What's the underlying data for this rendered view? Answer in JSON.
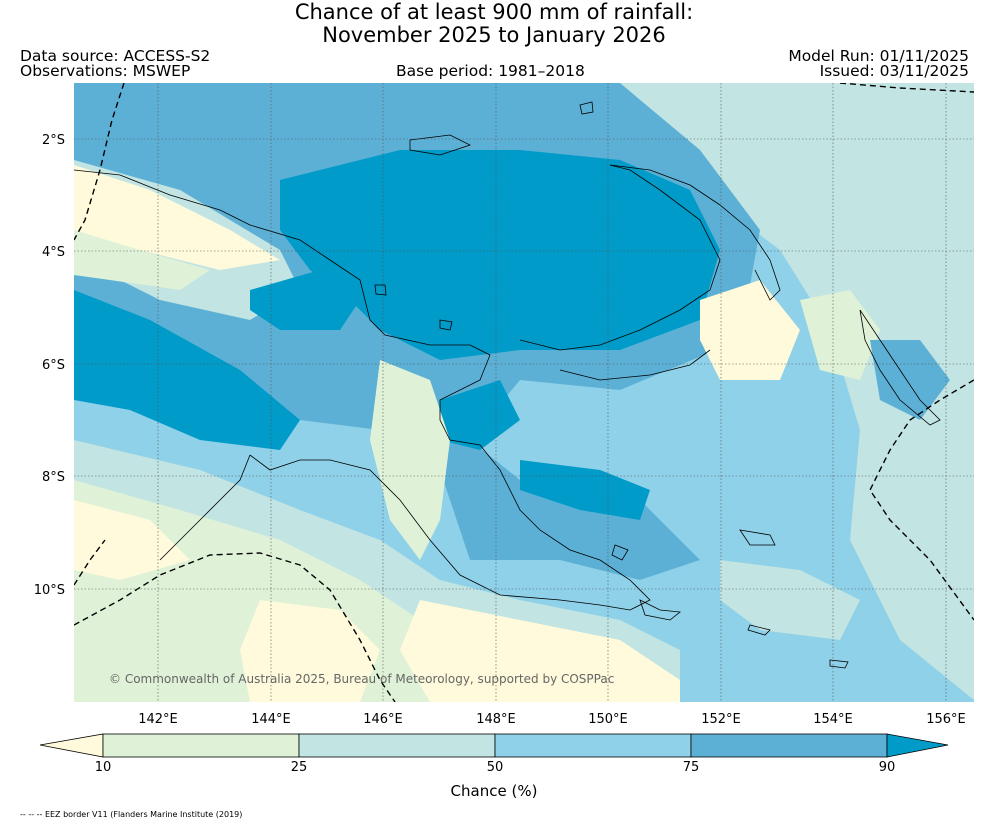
{
  "title": {
    "line1": "Chance of at least 900 mm of rainfall:",
    "line2": "November 2025 to January 2026"
  },
  "header": {
    "data_source": "Data source: ACCESS-S2",
    "observations": "Observations: MSWEP",
    "base_period": "Base period: 1981–2018",
    "model_run": "Model Run: 01/11/2025",
    "issued": "Issued: 03/11/2025"
  },
  "map": {
    "copyright": "© Commonwealth of Australia 2025, Bureau of Meteorology, supported by COSPPac",
    "lat_labels": [
      "2°S",
      "4°S",
      "6°S",
      "8°S",
      "10°S"
    ],
    "lon_labels": [
      "142°E",
      "144°E",
      "146°E",
      "148°E",
      "150°E",
      "152°E",
      "154°E",
      "156°E"
    ],
    "band_colors": [
      "#fefadb",
      "#dff2d7",
      "#c2e4e3",
      "#8ed1e8",
      "#5db0d5",
      "#009bc8"
    ]
  },
  "colorbar": {
    "ticks": [
      "10",
      "25",
      "50",
      "75",
      "90"
    ],
    "label": "Chance (%)",
    "colors": [
      "#fefadb",
      "#dff2d7",
      "#c2e4e3",
      "#8ed1e8",
      "#5db0d5",
      "#009bc8"
    ]
  },
  "footnote": "-- -- -- EEZ border V11 (Flanders Marine Institute (2019)"
}
